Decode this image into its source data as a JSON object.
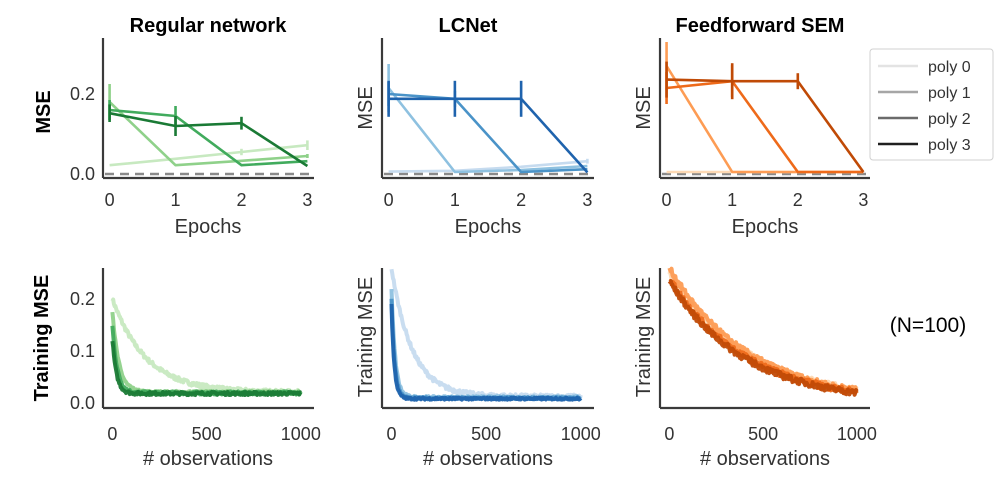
{
  "figure": {
    "annotation": "(N=100)",
    "legend": {
      "placement": "right",
      "entries": [
        {
          "label": "poly 0",
          "color": "#e3e3e3"
        },
        {
          "label": "poly 1",
          "color": "#a6a6a6"
        },
        {
          "label": "poly 2",
          "color": "#6b6b6b"
        },
        {
          "label": "poly 3",
          "color": "#1f1f1f"
        }
      ]
    }
  },
  "chart_data": [
    {
      "id": "regular-test",
      "type": "line",
      "title": "Regular network",
      "xlabel": "Epochs",
      "ylabel": "MSE",
      "ylabel_bold": true,
      "x": [
        0,
        1,
        2,
        3
      ],
      "xticks": [
        "0",
        "1",
        "2",
        "3"
      ],
      "yticks": [
        "0.0",
        "0.2"
      ],
      "ytick_values": [
        0.0,
        0.2
      ],
      "ylim": [
        -0.01,
        0.34
      ],
      "xlim": [
        -0.1,
        3.1
      ],
      "baseline": 0.0,
      "series": [
        {
          "name": "poly 0",
          "color": "#c7e9c0",
          "values": [
            0.022,
            0.038,
            0.055,
            0.072
          ],
          "err": [
            0.003,
            0.004,
            0.008,
            0.012
          ]
        },
        {
          "name": "poly 1",
          "color": "#8fd18a",
          "values": [
            0.18,
            0.022,
            0.033,
            0.045
          ],
          "err": [
            0.045,
            0.004,
            0.004,
            0.005
          ]
        },
        {
          "name": "poly 2",
          "color": "#41ab5d",
          "values": [
            0.16,
            0.145,
            0.022,
            0.032
          ],
          "err": [
            0.025,
            0.025,
            0.004,
            0.004
          ]
        },
        {
          "name": "poly 3",
          "color": "#1a7a35",
          "values": [
            0.152,
            0.12,
            0.127,
            0.02
          ],
          "err": [
            0.022,
            0.025,
            0.016,
            0.003
          ]
        }
      ]
    },
    {
      "id": "lcnet-test",
      "type": "line",
      "title": "LCNet",
      "xlabel": "Epochs",
      "ylabel": "MSE",
      "ylabel_bold": false,
      "x": [
        0,
        1,
        2,
        3
      ],
      "xticks": [
        "0",
        "1",
        "2",
        "3"
      ],
      "yticks": [],
      "ytick_values": [],
      "ylim": [
        -0.01,
        0.34
      ],
      "xlim": [
        -0.1,
        3.1
      ],
      "baseline": 0.0,
      "series": [
        {
          "name": "poly 0",
          "color": "#c6dbef",
          "values": [
            0.006,
            0.008,
            0.018,
            0.032
          ],
          "err": [
            0.002,
            0.002,
            0.003,
            0.006
          ]
        },
        {
          "name": "poly 1",
          "color": "#8ec1e0",
          "values": [
            0.215,
            0.005,
            0.01,
            0.02
          ],
          "err": [
            0.06,
            0.002,
            0.002,
            0.004
          ]
        },
        {
          "name": "poly 2",
          "color": "#4a93c8",
          "values": [
            0.2,
            0.188,
            0.005,
            0.012
          ],
          "err": [
            0.03,
            0.02,
            0.002,
            0.003
          ]
        },
        {
          "name": "poly 3",
          "color": "#1f63ad",
          "values": [
            0.188,
            0.188,
            0.188,
            0.004
          ],
          "err": [
            0.045,
            0.045,
            0.045,
            0.002
          ]
        }
      ]
    },
    {
      "id": "feedforward-sem-test",
      "type": "line",
      "title": "Feedforward  SEM",
      "xlabel": "Epochs",
      "ylabel": "MSE",
      "ylabel_bold": false,
      "x": [
        0,
        1,
        2,
        3
      ],
      "xticks": [
        "0",
        "1",
        "2",
        "3"
      ],
      "yticks": [],
      "ytick_values": [],
      "ylim": [
        -0.01,
        0.34
      ],
      "xlim": [
        -0.1,
        3.1
      ],
      "baseline": 0.0,
      "series": [
        {
          "name": "poly 0",
          "color": "#fdd9b4",
          "values": [
            0.005,
            0.005,
            0.005,
            0.005
          ],
          "err": [
            0.001,
            0.001,
            0.001,
            0.001
          ]
        },
        {
          "name": "poly 1",
          "color": "#fd9c54",
          "values": [
            0.27,
            0.005,
            0.005,
            0.005
          ],
          "err": [
            0.06,
            0.001,
            0.001,
            0.001
          ]
        },
        {
          "name": "poly 2",
          "color": "#ee6a1a",
          "values": [
            0.215,
            0.232,
            0.005,
            0.005
          ],
          "err": [
            0.04,
            0.04,
            0.001,
            0.001
          ]
        },
        {
          "name": "poly 3",
          "color": "#c04a06",
          "values": [
            0.236,
            0.232,
            0.232,
            0.005
          ],
          "err": [
            0.045,
            0.045,
            0.02,
            0.001
          ]
        }
      ]
    },
    {
      "id": "regular-train",
      "type": "line",
      "title": "",
      "xlabel": "# observations",
      "ylabel": "Training MSE",
      "ylabel_bold": true,
      "xticks": [
        "0",
        "500",
        "1000"
      ],
      "xtick_values": [
        0,
        500,
        1000
      ],
      "yticks": [
        "0.0",
        "0.1",
        "0.2"
      ],
      "ytick_values": [
        0.0,
        0.1,
        0.2
      ],
      "xlim": [
        -50,
        1070
      ],
      "ylim": [
        -0.01,
        0.26
      ],
      "n_points": 1000,
      "series": [
        {
          "name": "poly 0",
          "color": "#c7e9c0",
          "start": 0.2,
          "floor": 0.02,
          "tau": 180,
          "noise": 0.004
        },
        {
          "name": "poly 1",
          "color": "#8fd18a",
          "start": 0.178,
          "floor": 0.02,
          "tau": 34,
          "noise": 0.003
        },
        {
          "name": "poly 2",
          "color": "#41ab5d",
          "start": 0.148,
          "floor": 0.019,
          "tau": 26,
          "noise": 0.003
        },
        {
          "name": "poly 3",
          "color": "#1a7a35",
          "start": 0.122,
          "floor": 0.018,
          "tau": 22,
          "noise": 0.003
        }
      ]
    },
    {
      "id": "lcnet-train",
      "type": "line",
      "title": "",
      "xlabel": "# observations",
      "ylabel": "Training MSE",
      "ylabel_bold": false,
      "xticks": [
        "0",
        "500",
        "1000"
      ],
      "xtick_values": [
        0,
        500,
        1000
      ],
      "yticks": [],
      "ytick_values": [],
      "xlim": [
        -50,
        1070
      ],
      "ylim": [
        -0.01,
        0.26
      ],
      "n_points": 1000,
      "series": [
        {
          "name": "poly 0",
          "color": "#c6dbef",
          "start": 0.26,
          "floor": 0.012,
          "tau": 110,
          "noise": 0.004
        },
        {
          "name": "poly 1",
          "color": "#8ec1e0",
          "start": 0.22,
          "floor": 0.01,
          "tau": 20,
          "noise": 0.003
        },
        {
          "name": "poly 2",
          "color": "#4a93c8",
          "start": 0.2,
          "floor": 0.009,
          "tau": 17,
          "noise": 0.002
        },
        {
          "name": "poly 3",
          "color": "#1f63ad",
          "start": 0.19,
          "floor": 0.008,
          "tau": 15,
          "noise": 0.002
        }
      ]
    },
    {
      "id": "feedforward-sem-train",
      "type": "line",
      "title": "",
      "xlabel": "# observations",
      "ylabel": "Training MSE",
      "ylabel_bold": false,
      "xticks": [
        "0",
        "500",
        "1000"
      ],
      "xtick_values": [
        0,
        500,
        1000
      ],
      "yticks": [],
      "ytick_values": [],
      "xlim": [
        -50,
        1070
      ],
      "ylim": [
        -0.01,
        0.26
      ],
      "n_points": 1000,
      "series": [
        {
          "name": "poly 0",
          "color": "#fdd9b4",
          "start": 0.25,
          "floor": 0.0,
          "tau": 430,
          "noise": 0.006
        },
        {
          "name": "poly 1",
          "color": "#fd9c54",
          "start": 0.26,
          "floor": 0.0,
          "tau": 420,
          "noise": 0.006
        },
        {
          "name": "poly 2",
          "color": "#ee6a1a",
          "start": 0.24,
          "floor": 0.0,
          "tau": 410,
          "noise": 0.006
        },
        {
          "name": "poly 3",
          "color": "#c04a06",
          "start": 0.235,
          "floor": 0.0,
          "tau": 400,
          "noise": 0.006
        }
      ]
    }
  ]
}
